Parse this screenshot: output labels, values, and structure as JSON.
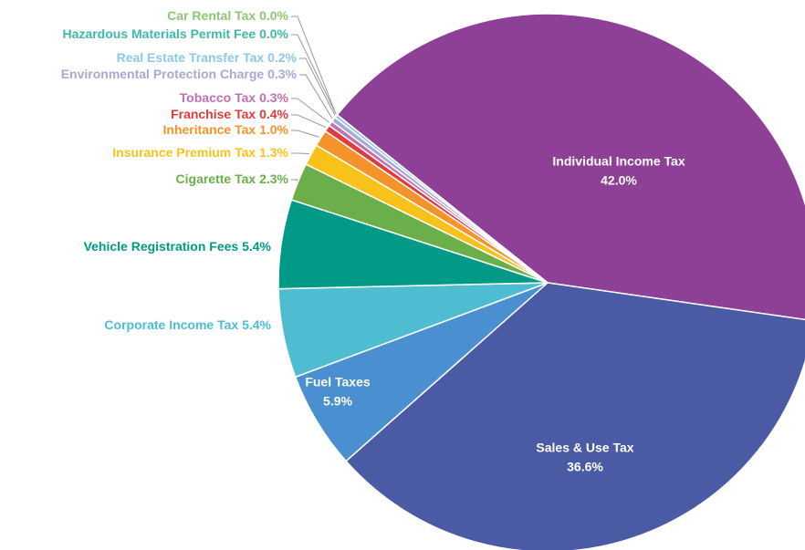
{
  "chart_data": {
    "type": "pie",
    "categories": [
      "Individual Income Tax",
      "Sales & Use Tax",
      "Fuel Taxes",
      "Corporate Income Tax",
      "Vehicle Registration Fees",
      "Cigarette Tax",
      "Insurance Premium Tax",
      "Inheritance Tax",
      "Franchise Tax",
      "Tobacco Tax",
      "Environmental Protection Charge",
      "Real Estate Transfer Tax",
      "Hazardous Materials Permit Fee",
      "Car Rental Tax"
    ],
    "values": [
      42.0,
      36.6,
      5.9,
      5.4,
      5.4,
      2.3,
      1.3,
      1.0,
      0.4,
      0.3,
      0.3,
      0.2,
      0.0,
      0.0
    ],
    "value_labels": [
      "42.0%",
      "36.6%",
      "5.9%",
      "5.4%",
      "5.4%",
      "2.3%",
      "1.3%",
      "1.0%",
      "0.4%",
      "0.3%",
      "0.3%",
      "0.2%",
      "0.0%",
      "0.0%"
    ],
    "colors": [
      "#8e3f96",
      "#4a5aa4",
      "#4a90d0",
      "#4ebdd2",
      "#009a87",
      "#6aaf4a",
      "#f8c21a",
      "#f4932a",
      "#e23b3b",
      "#c070b0",
      "#a8a8d8",
      "#8cc8ec",
      "#40b8a8",
      "#8cc870"
    ]
  }
}
